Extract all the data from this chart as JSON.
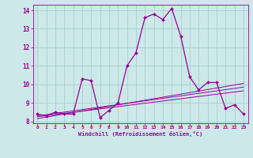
{
  "x": [
    0,
    1,
    2,
    3,
    4,
    5,
    6,
    7,
    8,
    9,
    10,
    11,
    12,
    13,
    14,
    15,
    16,
    17,
    18,
    19,
    20,
    21,
    22,
    23
  ],
  "main_line": [
    8.4,
    8.3,
    8.5,
    8.4,
    8.4,
    10.3,
    10.2,
    8.2,
    8.6,
    9.0,
    11.0,
    11.7,
    13.6,
    13.8,
    13.5,
    14.1,
    12.6,
    10.4,
    9.7,
    10.1,
    10.1,
    8.7,
    8.9,
    8.4
  ],
  "reg_lines": [
    [
      8.3,
      9.85
    ],
    [
      8.25,
      9.65
    ],
    [
      8.15,
      10.05
    ]
  ],
  "line_color": "#990099",
  "bg_color": "#cce8e8",
  "grid_color": "#aad0d0",
  "xlabel": "Windchill (Refroidissement éolien,°C)",
  "ylim": [
    7.9,
    14.3
  ],
  "xlim": [
    -0.5,
    23.5
  ],
  "yticks": [
    8,
    9,
    10,
    11,
    12,
    13,
    14
  ],
  "xticks": [
    0,
    1,
    2,
    3,
    4,
    5,
    6,
    7,
    8,
    9,
    10,
    11,
    12,
    13,
    14,
    15,
    16,
    17,
    18,
    19,
    20,
    21,
    22,
    23
  ]
}
